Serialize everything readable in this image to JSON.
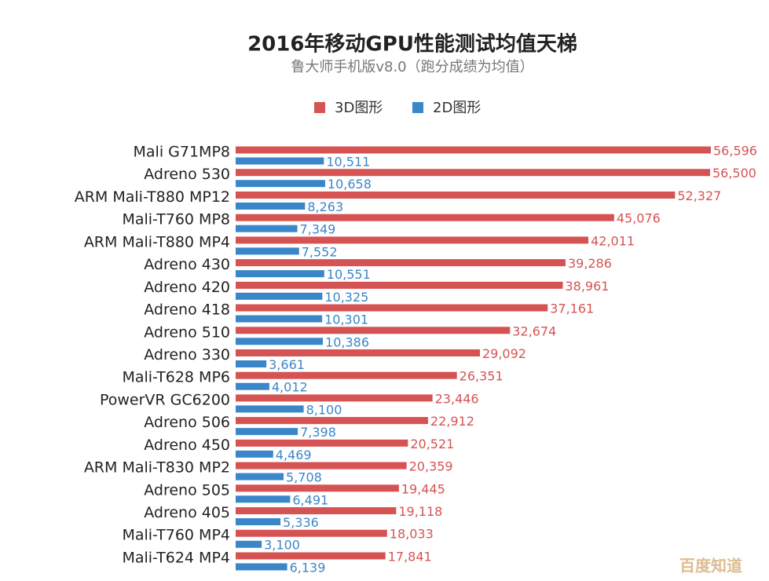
{
  "chart_data": {
    "type": "bar",
    "orientation": "horizontal",
    "title": "2016年移动GPU性能测试均值天梯",
    "subtitle": "鲁大师手机版v8.0（跑分成绩为均值）",
    "watermark": "百度知道",
    "legend": "top",
    "categories": [
      "Mali G71MP8",
      "Adreno 530",
      "ARM Mali-T880 MP12",
      "Mali-T760 MP8",
      "ARM Mali-T880 MP4",
      "Adreno 430",
      "Adreno 420",
      "Adreno 418",
      "Adreno 510",
      "Adreno 330",
      "Mali-T628 MP6",
      "PowerVR GC6200",
      "Adreno 506",
      "Adreno 450",
      "ARM Mali-T830 MP2",
      "Adreno 505",
      "Adreno 405",
      "Mali-T760 MP4",
      "Mali-T624 MP4"
    ],
    "series": [
      {
        "name": "3D图形",
        "color": "#d65353",
        "values": [
          56596,
          56500,
          52327,
          45076,
          42011,
          39286,
          38961,
          37161,
          32674,
          29092,
          26351,
          23446,
          22912,
          20521,
          20359,
          19445,
          19118,
          18033,
          17841
        ],
        "value_labels": [
          "56,596",
          "56,500",
          "52,327",
          "45,076",
          "42,011",
          "39,286",
          "38,961",
          "37,161",
          "32,674",
          "29,092",
          "26,351",
          "23,446",
          "22,912",
          "20,521",
          "20,359",
          "19,445",
          "19,118",
          "18,033",
          "17,841"
        ]
      },
      {
        "name": "2D图形",
        "color": "#3b86c8",
        "values": [
          10511,
          10658,
          8263,
          7349,
          7552,
          10551,
          10325,
          10301,
          10386,
          3661,
          4012,
          8100,
          7398,
          4469,
          5708,
          6491,
          5336,
          3100,
          6139
        ],
        "value_labels": [
          "10,511",
          "10,658",
          "8,263",
          "7,349",
          "7,552",
          "10,551",
          "10,325",
          "10,301",
          "10,386",
          "3,661",
          "4,012",
          "8,100",
          "7,398",
          "4,469",
          "5,708",
          "6,491",
          "5,336",
          "3,100",
          "6,139"
        ]
      }
    ]
  }
}
